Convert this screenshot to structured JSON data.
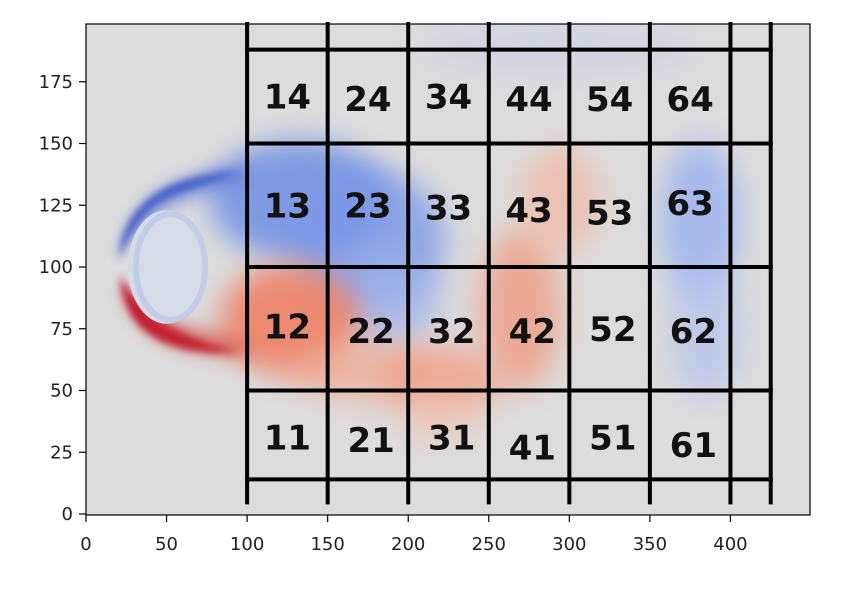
{
  "chart_data": {
    "type": "heatmap",
    "xlim": [
      0,
      450
    ],
    "ylim": [
      0,
      198
    ],
    "xticks": [
      "0",
      "50",
      "100",
      "150",
      "200",
      "250",
      "300",
      "350",
      "400"
    ],
    "yticks": [
      "0",
      "25",
      "50",
      "75",
      "100",
      "125",
      "150",
      "175"
    ],
    "grid_x": [
      100,
      150,
      200,
      250,
      300,
      350,
      400,
      425
    ],
    "grid_y": [
      14,
      50,
      100,
      150,
      188
    ],
    "cylinder": {
      "cx": 50,
      "cy": 100,
      "rx": 24,
      "ry": 23
    },
    "cells": [
      {
        "label": "14",
        "x": 125,
        "y": 169
      },
      {
        "label": "24",
        "x": 175,
        "y": 168
      },
      {
        "label": "34",
        "x": 225,
        "y": 169
      },
      {
        "label": "44",
        "x": 275,
        "y": 168
      },
      {
        "label": "54",
        "x": 325,
        "y": 168
      },
      {
        "label": "64",
        "x": 375,
        "y": 168
      },
      {
        "label": "13",
        "x": 125,
        "y": 125
      },
      {
        "label": "23",
        "x": 175,
        "y": 125
      },
      {
        "label": "33",
        "x": 225,
        "y": 124
      },
      {
        "label": "43",
        "x": 275,
        "y": 123
      },
      {
        "label": "53",
        "x": 325,
        "y": 122
      },
      {
        "label": "63",
        "x": 375,
        "y": 126
      },
      {
        "label": "12",
        "x": 125,
        "y": 76
      },
      {
        "label": "22",
        "x": 177,
        "y": 74
      },
      {
        "label": "32",
        "x": 227,
        "y": 74
      },
      {
        "label": "42",
        "x": 277,
        "y": 74
      },
      {
        "label": "52",
        "x": 327,
        "y": 75
      },
      {
        "label": "62",
        "x": 377,
        "y": 74
      },
      {
        "label": "11",
        "x": 125,
        "y": 31
      },
      {
        "label": "21",
        "x": 177,
        "y": 30
      },
      {
        "label": "31",
        "x": 227,
        "y": 31
      },
      {
        "label": "41",
        "x": 277,
        "y": 27
      },
      {
        "label": "51",
        "x": 327,
        "y": 31
      },
      {
        "label": "61",
        "x": 377,
        "y": 28
      }
    ],
    "colors": {
      "background": "#dcdcdc",
      "positive": "#b40426",
      "negative": "#3b4cc0",
      "grid": "#000000"
    }
  }
}
